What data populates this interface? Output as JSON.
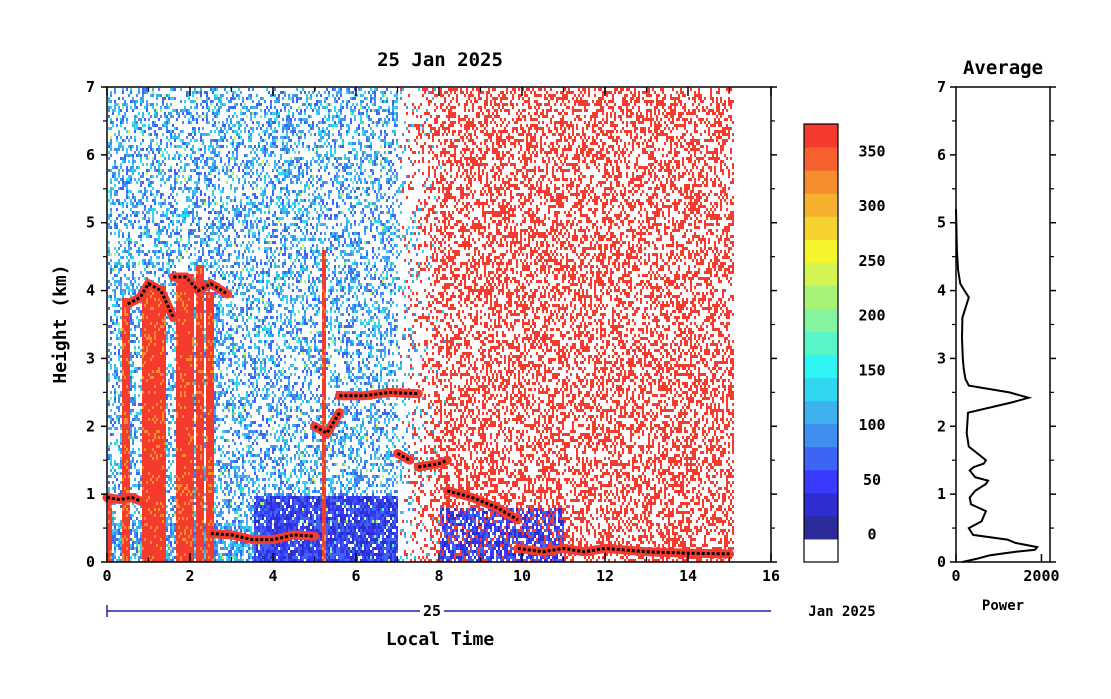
{
  "chart_data": [
    {
      "type": "heatmap",
      "title": "25 Jan 2025",
      "xlabel": "Local Time",
      "ylabel": "Height (km)",
      "x_range": [
        0,
        16
      ],
      "y_range": [
        0,
        7
      ],
      "x_ticks": [
        "0",
        "2",
        "4",
        "6",
        "8",
        "10",
        "12",
        "14",
        "16"
      ],
      "y_ticks": [
        "0",
        "1",
        "2",
        "3",
        "4",
        "5",
        "6",
        "7"
      ],
      "date_axis": {
        "day_label": "25",
        "month_label": "Jan 2025"
      },
      "data_extent_hours": [
        0,
        15.1
      ],
      "colorbar": {
        "ticks": [
          "0",
          "50",
          "100",
          "150",
          "200",
          "250",
          "300",
          "350"
        ],
        "tick_values": [
          0,
          50,
          100,
          150,
          200,
          250,
          300,
          350
        ],
        "range": [
          -25,
          375
        ],
        "colors": [
          "#ffffff",
          "#2b2b9a",
          "#2e2ed0",
          "#3a3aff",
          "#3d65f5",
          "#3f8ef0",
          "#3eb2ee",
          "#2fd7f0",
          "#2ff5f5",
          "#58f5c9",
          "#84f59e",
          "#a9f278",
          "#d2f552",
          "#f5f52e",
          "#f5d22e",
          "#f5b02e",
          "#f58c2e",
          "#f5602e",
          "#f53a2e"
        ]
      },
      "cloud_layers": [
        {
          "t": [
            0.0,
            0.3,
            0.6,
            0.8
          ],
          "h": [
            0.95,
            0.92,
            0.95,
            0.9
          ]
        },
        {
          "t": [
            0.5,
            0.8,
            1.0,
            1.3,
            1.6
          ],
          "h": [
            3.8,
            3.9,
            4.1,
            4.0,
            3.6
          ]
        },
        {
          "t": [
            1.6,
            1.9,
            2.2,
            2.5,
            2.9
          ],
          "h": [
            4.2,
            4.2,
            4.0,
            4.1,
            3.95
          ]
        },
        {
          "t": [
            2.5,
            3.0,
            3.5,
            4.0,
            4.5,
            5.0
          ],
          "h": [
            0.42,
            0.4,
            0.33,
            0.33,
            0.4,
            0.38
          ]
        },
        {
          "t": [
            5.0,
            5.3,
            5.6
          ],
          "h": [
            2.0,
            1.9,
            2.2
          ]
        },
        {
          "t": [
            5.6,
            6.2,
            6.8,
            7.5
          ],
          "h": [
            2.45,
            2.45,
            2.5,
            2.48
          ]
        },
        {
          "t": [
            7.0,
            7.3
          ],
          "h": [
            1.6,
            1.5
          ]
        },
        {
          "t": [
            7.5,
            8.0,
            8.2
          ],
          "h": [
            1.4,
            1.45,
            1.5
          ]
        },
        {
          "t": [
            8.2,
            8.8,
            9.4,
            9.9
          ],
          "h": [
            1.05,
            0.95,
            0.8,
            0.62
          ]
        },
        {
          "t": [
            9.9,
            10.5,
            11.0,
            11.5,
            12.0,
            13.0,
            14.0,
            15.0
          ],
          "h": [
            0.2,
            0.15,
            0.2,
            0.15,
            0.2,
            0.15,
            0.13,
            0.12
          ]
        }
      ],
      "convective_columns": [
        {
          "t0": 0.0,
          "t1": 0.1,
          "top": 0.9
        },
        {
          "t0": 0.35,
          "t1": 0.55,
          "top": 3.9
        },
        {
          "t0": 0.8,
          "t1": 1.4,
          "top": 4.1
        },
        {
          "t0": 1.65,
          "t1": 2.05,
          "top": 4.25
        },
        {
          "t0": 2.1,
          "t1": 2.3,
          "top": 4.4
        },
        {
          "t0": 2.38,
          "t1": 2.55,
          "top": 4.0
        },
        {
          "t0": 5.15,
          "t1": 5.25,
          "top": 4.6
        }
      ]
    },
    {
      "type": "line",
      "title": "Average",
      "xlabel": "Power",
      "x_range": [
        0,
        2200
      ],
      "y_range": [
        0,
        7
      ],
      "x_ticks": [
        "0",
        "2000"
      ],
      "y_ticks": [
        "0",
        "1",
        "2",
        "3",
        "4",
        "5",
        "6",
        "7"
      ],
      "series": [
        {
          "x": [
            150,
            500,
            800,
            1400,
            1850,
            1900,
            1400,
            1200,
            400,
            300,
            600,
            700,
            350,
            320,
            450,
            700,
            750,
            450,
            320,
            420,
            650,
            700,
            500,
            300,
            250,
            280,
            1300,
            1700,
            1250,
            300,
            220,
            180,
            160,
            140,
            150,
            300,
            200,
            100,
            50,
            20,
            0
          ],
          "y": [
            0.0,
            0.05,
            0.1,
            0.15,
            0.18,
            0.22,
            0.28,
            0.33,
            0.4,
            0.5,
            0.6,
            0.75,
            0.85,
            0.95,
            1.05,
            1.15,
            1.2,
            1.25,
            1.35,
            1.4,
            1.45,
            1.5,
            1.6,
            1.7,
            1.9,
            2.2,
            2.35,
            2.42,
            2.5,
            2.6,
            2.7,
            2.85,
            3.0,
            3.3,
            3.6,
            3.9,
            4.0,
            4.1,
            4.3,
            4.6,
            5.2
          ]
        }
      ]
    }
  ]
}
